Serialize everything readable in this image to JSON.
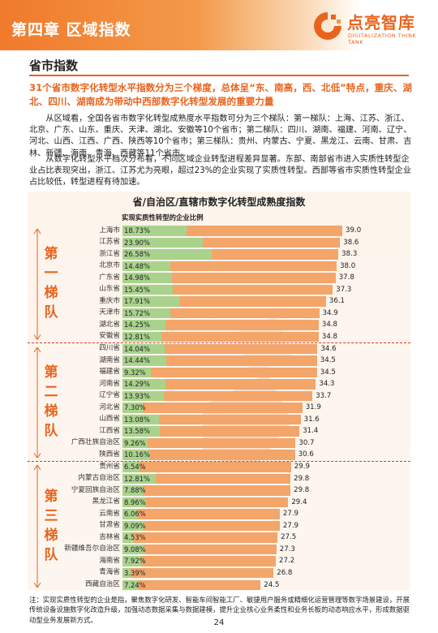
{
  "header": {
    "chapter_title": "第四章  区域指数",
    "logo_cn": "点亮智库",
    "logo_en": "DIGITALIZATION THINK TANK"
  },
  "section": {
    "title": "省市指数",
    "lead": "31个省市数字化转型水平指数分为三个梯度，总体呈“东、南高，西、北低”特点，重庆、湖北、四川、湖南成为带动中西部数字化转型发展的重要力量",
    "paragraph1": "从区域看，全国各省市数字化转型成熟度水平指数可分为三个梯队：第一梯队：上海、江苏、浙江、北京、广东、山东、重庆、天津、湖北、安徽等10个省市；第二梯队：四川、湖南、福建、河南、辽宁、河北、山西、江西、广西、陕西等10个省市；第三梯队：贵州、内蒙古、宁夏、黑龙江、云南、甘肃、吉林、新疆、海南、青海、西藏等11个省市。",
    "paragraph2": "从数字化转型水平档次分布看，不同区域企业转型进程差异显著。东部、南部省市进入实质性转型企业占比表现突出，浙江、江苏尤为亮眼，超过23%的企业实现了实质性转型。西部等省市实质性转型企业占比较低，转型进程有待加速。"
  },
  "chart_data": {
    "type": "bar",
    "title": "省/自治区/直辖市数字化转型成熟度指数",
    "legend_note": "实现实质性转型的企业比例",
    "tiers": [
      "第一梯队",
      "第二梯队",
      "第三梯队"
    ],
    "categories": [
      "上海市",
      "江苏省",
      "浙江省",
      "北京市",
      "广东省",
      "山东省",
      "重庆市",
      "天津市",
      "湖北省",
      "安徽省",
      "四川省",
      "湖南省",
      "福建省",
      "河南省",
      "辽宁省",
      "河北省",
      "山西省",
      "江西省",
      "广西壮族自治区",
      "陕西省",
      "贵州省",
      "内蒙古自治区",
      "宁夏回族自治区",
      "黑龙江省",
      "云南省",
      "甘肃省",
      "吉林省",
      "新疆维吾尔自治区",
      "海南省",
      "青海省",
      "西藏自治区"
    ],
    "series": [
      {
        "name": "",
        "values": [
          39.0,
          38.6,
          38.3,
          38.0,
          37.8,
          37.3,
          36.1,
          34.9,
          34.8,
          34.8,
          34.6,
          34.5,
          34.5,
          34.3,
          33.7,
          31.9,
          31.6,
          31.4,
          30.7,
          30.6,
          29.9,
          29.8,
          29.8,
          29.4,
          27.9,
          27.9,
          27.5,
          27.3,
          27.2,
          26.8,
          24.5
        ]
      },
      {
        "name": "实现实质性转型的企业比例",
        "values": [
          18.73,
          23.9,
          26.58,
          14.48,
          14.98,
          15.45,
          17.91,
          15.72,
          14.25,
          12.81,
          14.04,
          14.44,
          9.32,
          14.29,
          13.93,
          7.3,
          13.08,
          13.58,
          9.26,
          10.16,
          6.54,
          12.81,
          7.88,
          8.96,
          6.06,
          9.09,
          4.53,
          9.08,
          7.92,
          3.39,
          7.24
        ]
      }
    ],
    "value_labels": [
      "39.0",
      "38.6",
      "38.3",
      "38.0",
      "37.8",
      "37.3",
      "36.1",
      "34.9",
      "34.8",
      "34.8",
      "34.6",
      "34.5",
      "34.5",
      "34.3",
      "33.7",
      "31.9",
      "31.6",
      "31.4",
      "30.7",
      "30.6",
      "29.9",
      "29.8",
      "29.8",
      "29.4",
      "27.9",
      "27.9",
      "27.5",
      "27.3",
      "27.2",
      "26.8",
      "24.5"
    ],
    "pct_labels": [
      "18.73%",
      "23.90%",
      "26.58%",
      "14.48%",
      "14.98%",
      "15.45%",
      "17.91%",
      "15.72%",
      "14.25%",
      "12.81%",
      "14.04%",
      "14.44%",
      "9.32%",
      "14.29%",
      "13.93%",
      "7.30%",
      "13.08%",
      "13.58%",
      "9.26%",
      "10.16%",
      "6.54%",
      "12.81%",
      "7.88%",
      "8.96%",
      "6.06%",
      "9.09%",
      "4.53%",
      "9.08%",
      "7.92%",
      "3.39%",
      "7.24%"
    ],
    "colors": {
      "index_bar": "#f3a56a",
      "share_bar": "#a9d38d",
      "tier_label": "#e8641d",
      "divider": "#d93a2a"
    }
  },
  "footer": {
    "note": "注：实现实质性转型的企业是指，聚焦数字化研发、智能车间智能工厂、敏捷用户服务或精细化运营管理等数字场景建设，开展传统设备设施数字化改造升级，加强动态数据采集与数据建模，提升企业核心业务柔性和业务长板的动态响应水平，形成数据驱动型业务发展新方式。",
    "page_number": "24"
  }
}
